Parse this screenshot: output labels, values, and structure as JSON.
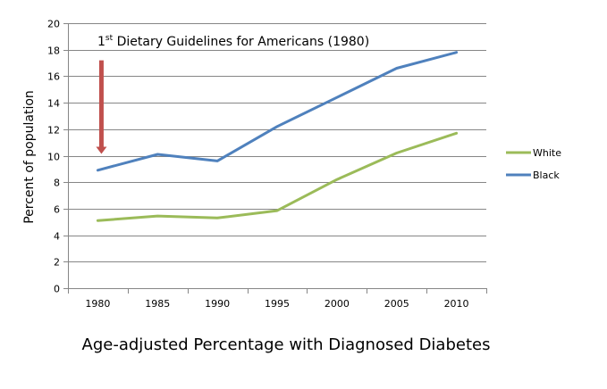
{
  "chart_data": {
    "type": "line",
    "title": "Age-adjusted Percentage with Diagnosed Diabetes",
    "xlabel": "",
    "ylabel": "Percent of population",
    "categories": [
      "1980",
      "1985",
      "1990",
      "1995",
      "2000",
      "2005",
      "2010"
    ],
    "ylim": [
      0,
      20
    ],
    "yticks": [
      0,
      2,
      4,
      6,
      8,
      10,
      12,
      14,
      16,
      18,
      20
    ],
    "grid": true,
    "legend_position": "right",
    "series": [
      {
        "name": "White",
        "color": "#9bbb59",
        "values": [
          5.1,
          5.45,
          5.3,
          5.85,
          8.2,
          10.2,
          11.7
        ]
      },
      {
        "name": "Black",
        "color": "#4f81bd",
        "values": [
          8.9,
          10.1,
          9.6,
          12.2,
          14.4,
          16.6,
          17.8
        ]
      }
    ],
    "annotations": [
      {
        "text_prefix": "1",
        "text_superscript": "st",
        "text_main": " Dietary Guidelines for Americans (1980)",
        "arrow_color": "#c0504d",
        "arrow_at_category": "1980",
        "arrow_from_value": 17.2,
        "arrow_to_value": 10.2
      }
    ]
  }
}
